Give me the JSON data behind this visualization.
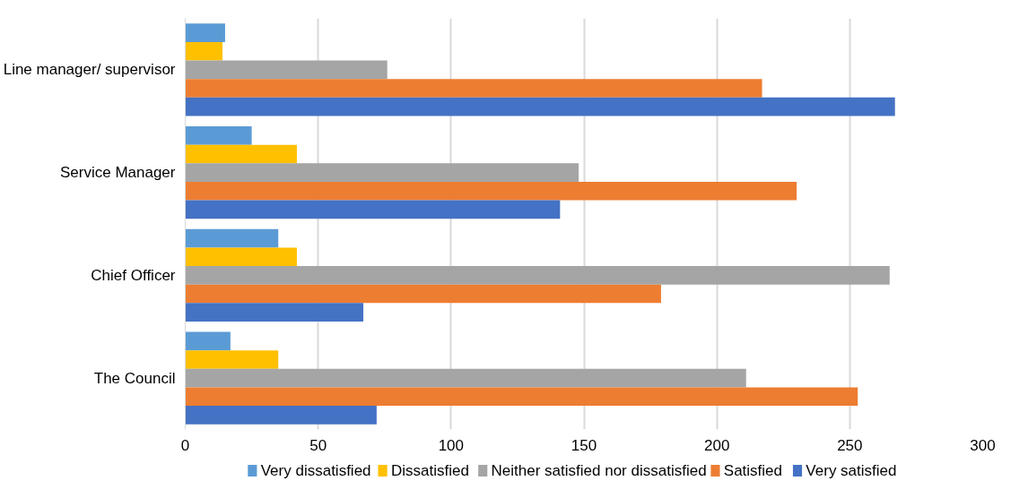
{
  "chart_data": {
    "type": "bar",
    "orientation": "horizontal",
    "categories": [
      "Line manager/ supervisor",
      "Service Manager",
      "Chief Officer",
      "The Council"
    ],
    "series": [
      {
        "name": "Very dissatisfied",
        "color": "#5b9bd5",
        "values": [
          15,
          25,
          35,
          17
        ]
      },
      {
        "name": "Dissatisfied",
        "color": "#ffc000",
        "values": [
          14,
          42,
          42,
          35
        ]
      },
      {
        "name": "Neither satisfied nor dissatisfied",
        "color": "#a5a5a5",
        "values": [
          76,
          148,
          265,
          211
        ]
      },
      {
        "name": "Satisfied",
        "color": "#ed7d31",
        "values": [
          217,
          230,
          179,
          253
        ]
      },
      {
        "name": "Very satisfied",
        "color": "#4472c4",
        "values": [
          267,
          141,
          67,
          72
        ]
      }
    ],
    "xlim": [
      0,
      300
    ],
    "xticks": [
      0,
      50,
      100,
      150,
      200,
      250,
      300
    ],
    "grid": "x",
    "legend": "bottom"
  }
}
